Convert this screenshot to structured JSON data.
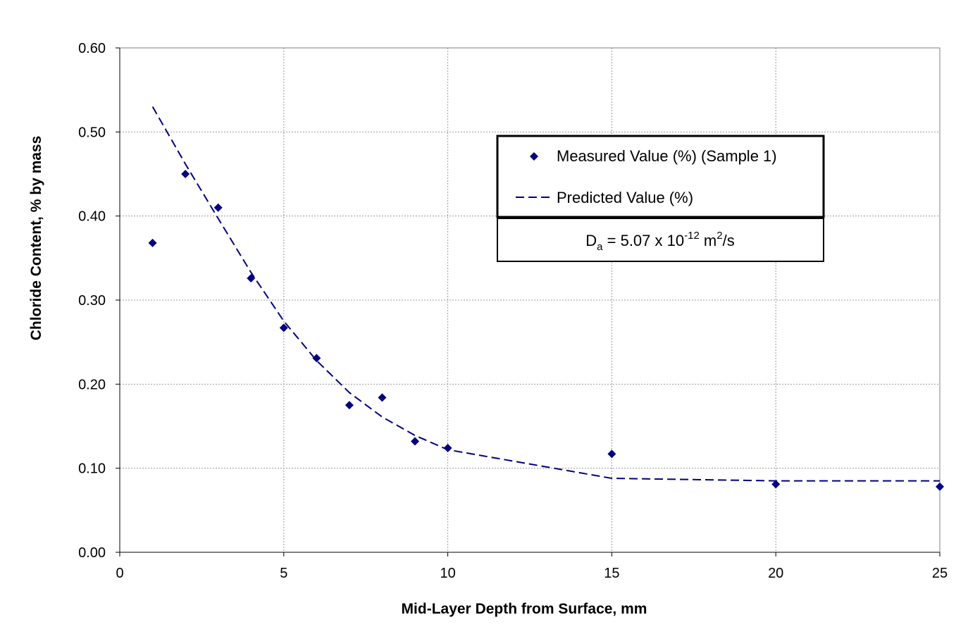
{
  "chart_data": {
    "type": "scatter",
    "title": "",
    "xlabel": "Mid-Layer Depth from Surface, mm",
    "ylabel": "Chloride Content, % by mass",
    "xlim": [
      0,
      25
    ],
    "ylim": [
      0,
      0.6
    ],
    "xticks": [
      "0",
      "5",
      "10",
      "15",
      "20",
      "25"
    ],
    "yticks": [
      "0.00",
      "0.10",
      "0.20",
      "0.30",
      "0.40",
      "0.50",
      "0.60"
    ],
    "grid": true,
    "legend_position": "top-right",
    "series": [
      {
        "name": "Measured Value (%) (Sample 1)",
        "mark": "diamond",
        "color": "#000080",
        "x": [
          1,
          2,
          3,
          4,
          5,
          6,
          7,
          8,
          9,
          10,
          15,
          20,
          25
        ],
        "y": [
          0.368,
          0.45,
          0.41,
          0.326,
          0.267,
          0.231,
          0.175,
          0.184,
          0.132,
          0.124,
          0.117,
          0.081,
          0.078
        ]
      },
      {
        "name": "Predicted Value (%)",
        "mark": "dashed-line",
        "color": "#000080",
        "x": [
          1,
          2,
          3,
          4,
          5,
          6,
          7,
          8,
          9,
          10,
          15,
          20,
          25
        ],
        "y": [
          0.53,
          0.462,
          0.397,
          0.333,
          0.275,
          0.228,
          0.19,
          0.161,
          0.139,
          0.122,
          0.088,
          0.085,
          0.085
        ]
      }
    ],
    "annotation": {
      "prefix": "D",
      "subscript": "a",
      "middle": " = 5.07 x 10",
      "exponent": "-12",
      "unit_base": " m",
      "unit_exponent": "2",
      "unit_suffix": "/s"
    }
  }
}
